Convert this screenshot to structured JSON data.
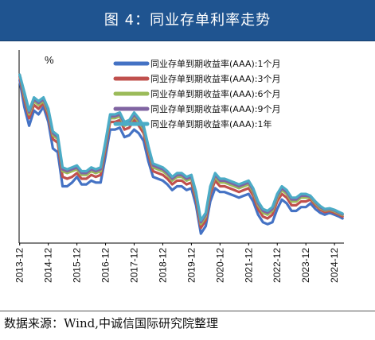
{
  "header": {
    "title": "图 4：同业存单利率走势"
  },
  "source": {
    "text": "数据来源：Wind,中诚信国际研究院整理"
  },
  "chart_data": {
    "type": "line",
    "y_unit_label": "%",
    "x_tick_labels": [
      "2013-12",
      "2014-12",
      "2015-12",
      "2016-12",
      "2017-12",
      "2018-12",
      "2019-12",
      "2020-12",
      "2021-12",
      "2022-12",
      "2023-12",
      "2024-12"
    ],
    "x_range": [
      2013.9,
      2025.25
    ],
    "y_range": [
      1.1,
      6.2
    ],
    "grid": false,
    "legend_position": "top-right",
    "x": [
      2013.92,
      2014.08,
      2014.25,
      2014.42,
      2014.58,
      2014.75,
      2014.92,
      2015.08,
      2015.25,
      2015.42,
      2015.58,
      2015.75,
      2015.92,
      2016.08,
      2016.25,
      2016.42,
      2016.58,
      2016.75,
      2016.92,
      2017.08,
      2017.25,
      2017.42,
      2017.58,
      2017.75,
      2017.92,
      2018.08,
      2018.25,
      2018.42,
      2018.58,
      2018.75,
      2018.92,
      2019.08,
      2019.25,
      2019.42,
      2019.58,
      2019.75,
      2019.92,
      2020.08,
      2020.25,
      2020.42,
      2020.58,
      2020.75,
      2020.92,
      2021.08,
      2021.25,
      2021.42,
      2021.58,
      2021.75,
      2021.92,
      2022.08,
      2022.25,
      2022.42,
      2022.58,
      2022.75,
      2022.92,
      2023.08,
      2023.25,
      2023.42,
      2023.58,
      2023.75,
      2023.92,
      2024.08,
      2024.25,
      2024.42,
      2024.58,
      2024.75,
      2024.92,
      2025.08,
      2025.2
    ],
    "series": [
      {
        "name": "同业存单到期收益率(AAA):1个月",
        "color": "#4472c4",
        "values": [
          5.4,
          4.7,
          4.2,
          4.6,
          4.5,
          4.7,
          4.3,
          3.6,
          3.5,
          2.6,
          2.6,
          2.7,
          2.85,
          2.65,
          2.65,
          2.75,
          2.7,
          2.7,
          3.4,
          4.1,
          4.1,
          4.15,
          3.9,
          3.95,
          4.1,
          4.0,
          3.8,
          3.25,
          2.85,
          2.8,
          2.75,
          2.65,
          2.5,
          2.6,
          2.6,
          2.5,
          2.55,
          2.1,
          1.35,
          1.55,
          2.2,
          2.55,
          2.45,
          2.45,
          2.4,
          2.35,
          2.3,
          2.35,
          2.4,
          2.2,
          1.85,
          1.65,
          1.6,
          1.65,
          2.0,
          2.25,
          2.15,
          1.95,
          1.95,
          2.05,
          2.05,
          2.15,
          2.0,
          1.9,
          1.85,
          1.9,
          1.85,
          1.8,
          1.75
        ]
      },
      {
        "name": "同业存单到期收益率(AAA):3个月",
        "color": "#c0504d",
        "values": [
          5.5,
          4.9,
          4.4,
          4.75,
          4.65,
          4.8,
          4.45,
          3.85,
          3.75,
          2.85,
          2.8,
          2.85,
          2.95,
          2.8,
          2.8,
          2.9,
          2.85,
          2.9,
          3.6,
          4.3,
          4.3,
          4.35,
          4.1,
          4.15,
          4.35,
          4.2,
          4.0,
          3.45,
          3.0,
          2.95,
          2.9,
          2.8,
          2.65,
          2.75,
          2.75,
          2.65,
          2.7,
          2.25,
          1.5,
          1.7,
          2.4,
          2.75,
          2.6,
          2.6,
          2.55,
          2.5,
          2.45,
          2.5,
          2.55,
          2.35,
          2.0,
          1.8,
          1.75,
          1.85,
          2.2,
          2.4,
          2.3,
          2.1,
          2.1,
          2.2,
          2.2,
          2.25,
          2.1,
          1.98,
          1.92,
          1.95,
          1.9,
          1.85,
          1.8
        ]
      },
      {
        "name": "同业存单到期收益率(AAA):6个月",
        "color": "#9bbb59",
        "values": [
          5.55,
          5.0,
          4.5,
          4.85,
          4.75,
          4.85,
          4.55,
          3.95,
          3.85,
          3.0,
          2.95,
          3.0,
          3.05,
          2.9,
          2.9,
          3.0,
          2.95,
          3.0,
          3.7,
          4.4,
          4.4,
          4.45,
          4.2,
          4.25,
          4.45,
          4.3,
          4.1,
          3.55,
          3.1,
          3.05,
          3.0,
          2.9,
          2.75,
          2.85,
          2.85,
          2.75,
          2.8,
          2.35,
          1.6,
          1.8,
          2.5,
          2.85,
          2.7,
          2.7,
          2.65,
          2.6,
          2.55,
          2.6,
          2.65,
          2.45,
          2.1,
          1.9,
          1.85,
          1.95,
          2.3,
          2.5,
          2.4,
          2.2,
          2.2,
          2.3,
          2.3,
          2.3,
          2.15,
          2.02,
          1.96,
          1.98,
          1.94,
          1.88,
          1.84
        ]
      },
      {
        "name": "同业存单到期收益率(AAA):9个月",
        "color": "#8064a2",
        "values": [
          5.55,
          5.05,
          4.55,
          4.9,
          4.8,
          4.9,
          4.6,
          4.0,
          3.9,
          3.05,
          3.0,
          3.05,
          3.1,
          2.95,
          2.95,
          3.05,
          3.0,
          3.05,
          3.75,
          4.45,
          4.45,
          4.5,
          4.25,
          4.3,
          4.5,
          4.35,
          4.15,
          3.6,
          3.15,
          3.1,
          3.05,
          2.95,
          2.8,
          2.9,
          2.9,
          2.8,
          2.85,
          2.4,
          1.65,
          1.85,
          2.55,
          2.9,
          2.75,
          2.75,
          2.7,
          2.65,
          2.6,
          2.65,
          2.7,
          2.5,
          2.15,
          1.95,
          1.9,
          2.0,
          2.35,
          2.55,
          2.45,
          2.25,
          2.25,
          2.35,
          2.35,
          2.33,
          2.18,
          2.05,
          1.98,
          2.0,
          1.96,
          1.9,
          1.86
        ]
      },
      {
        "name": "同业存单到期收益率(AAA):1年",
        "color": "#4bacc6",
        "values": [
          5.55,
          5.1,
          4.6,
          4.95,
          4.85,
          4.95,
          4.65,
          4.05,
          3.95,
          3.1,
          3.05,
          3.1,
          3.15,
          3.0,
          3.0,
          3.1,
          3.05,
          3.1,
          3.8,
          4.5,
          4.5,
          4.55,
          4.3,
          4.35,
          4.55,
          4.4,
          4.2,
          3.65,
          3.2,
          3.15,
          3.1,
          3.0,
          2.85,
          2.95,
          2.95,
          2.85,
          2.9,
          2.45,
          1.7,
          1.9,
          2.6,
          2.95,
          2.8,
          2.8,
          2.75,
          2.7,
          2.65,
          2.7,
          2.75,
          2.55,
          2.2,
          2.0,
          1.95,
          2.05,
          2.4,
          2.6,
          2.5,
          2.3,
          2.3,
          2.4,
          2.4,
          2.35,
          2.2,
          2.08,
          2.0,
          2.02,
          1.98,
          1.92,
          1.88
        ]
      }
    ]
  }
}
